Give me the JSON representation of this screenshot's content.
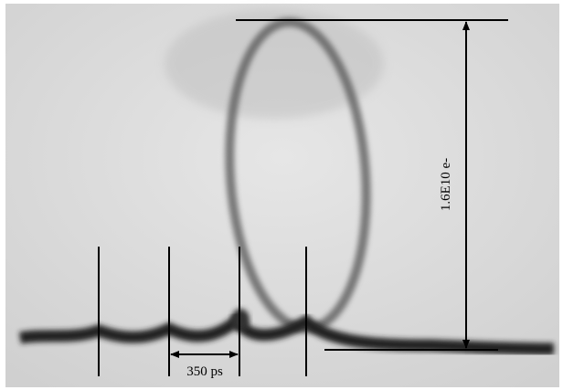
{
  "annotations": {
    "vertical_scale": "1.6E10 e-",
    "time_interval": "350 ps"
  }
}
